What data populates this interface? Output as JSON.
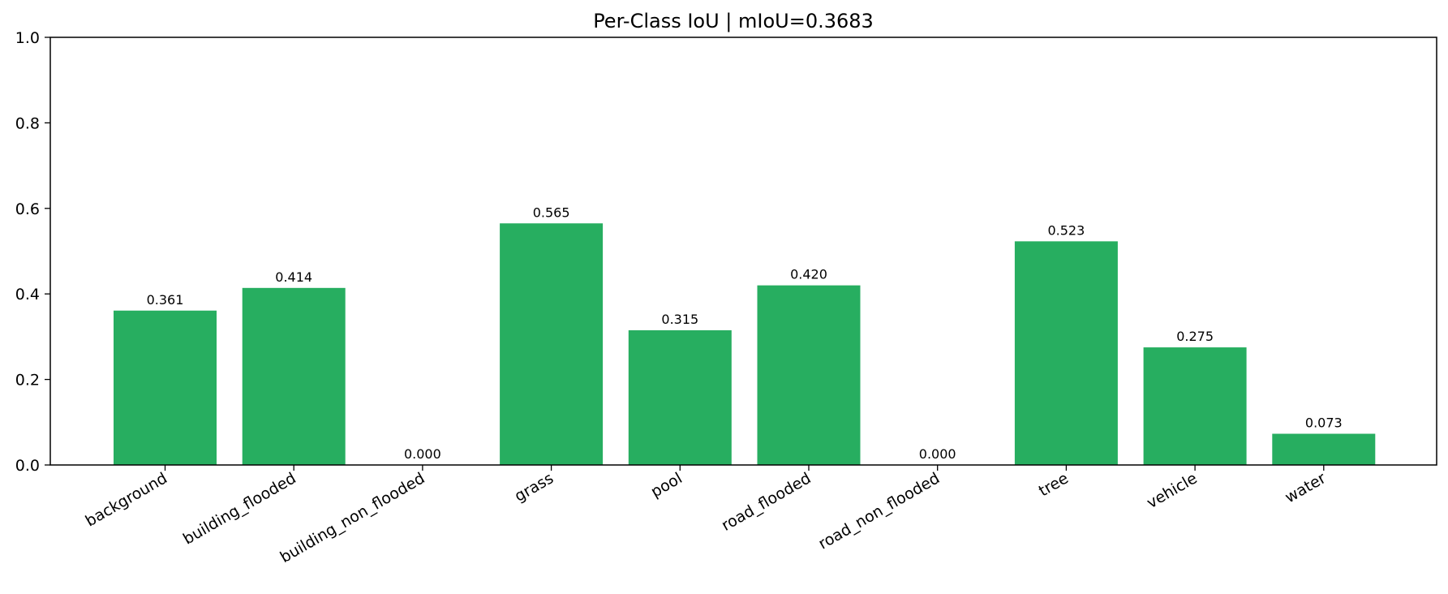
{
  "chart_data": {
    "type": "bar",
    "title": "Per-Class IoU | mIoU=0.3683",
    "xlabel": "",
    "ylabel": "",
    "categories": [
      "background",
      "building_flooded",
      "building_non_flooded",
      "grass",
      "pool",
      "road_flooded",
      "road_non_flooded",
      "tree",
      "vehicle",
      "water"
    ],
    "values": [
      0.361,
      0.414,
      0.0,
      0.565,
      0.315,
      0.42,
      0.0,
      0.523,
      0.275,
      0.073
    ],
    "value_labels": [
      "0.361",
      "0.414",
      "0.000",
      "0.565",
      "0.315",
      "0.420",
      "0.000",
      "0.523",
      "0.275",
      "0.073"
    ],
    "ylim": [
      0,
      1.0
    ],
    "yticks": [
      "0.0",
      "0.2",
      "0.4",
      "0.6",
      "0.8",
      "1.0"
    ],
    "bar_color": "#27ae60",
    "grid": false,
    "legend": "none"
  }
}
